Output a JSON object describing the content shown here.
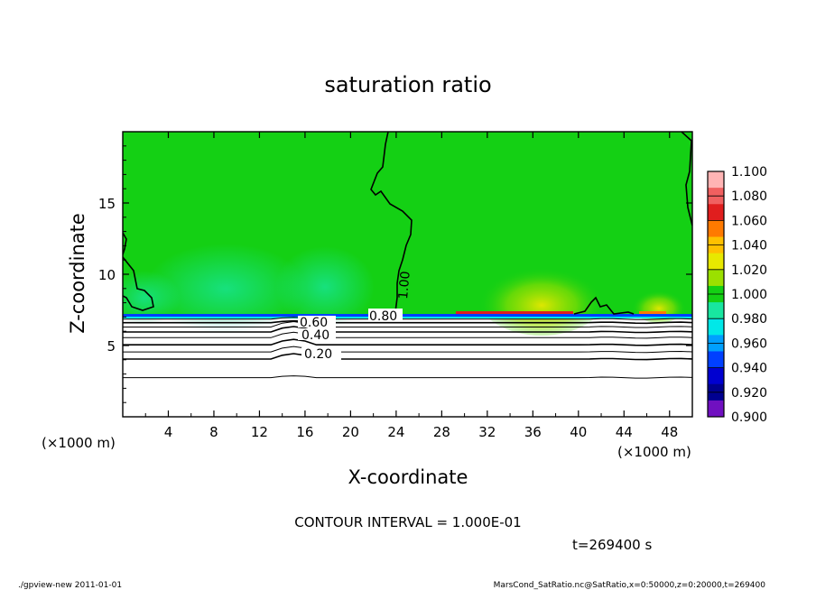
{
  "chart_data": {
    "type": "heatmap",
    "title": "saturation ratio",
    "xlabel": "X-coordinate",
    "ylabel": "Z-coordinate",
    "x_unit_label": "(×1000 m)",
    "y_unit_label": "(×1000 m)",
    "xlim": [
      0,
      50
    ],
    "ylim": [
      0,
      20
    ],
    "x_ticks": [
      "4",
      "8",
      "12",
      "16",
      "20",
      "24",
      "28",
      "32",
      "36",
      "40",
      "44",
      "48"
    ],
    "y_ticks": [
      "5",
      "10",
      "15"
    ],
    "colorbar": {
      "labels": [
        "1.100",
        "1.080",
        "1.060",
        "1.040",
        "1.020",
        "1.000",
        "0.980",
        "0.960",
        "0.940",
        "0.920",
        "0.900"
      ],
      "colors": [
        "#ffb4b4",
        "#f06060",
        "#e01e1e",
        "#ff7a00",
        "#ffc000",
        "#e8e800",
        "#9be000",
        "#14d014",
        "#18e6a0",
        "#00e8e8",
        "#00a0ff",
        "#0040ff",
        "#0000d0",
        "#000090",
        "#7010c0"
      ]
    },
    "fill_field": {
      "above_cloud_base": "1.000 (green) with weaker 0.98–0.99 patches near z≈7–11 and supersaturation 1.00–1.06 near x≈30–40",
      "cloud_base_z": 7.0
    },
    "contour_labels": [
      "1.00",
      "0.80",
      "0.60",
      "0.40",
      "0.20"
    ],
    "contour_levels_z": [
      {
        "value": 0.9,
        "z": 6.85
      },
      {
        "value": 0.8,
        "z": 6.6
      },
      {
        "value": 0.7,
        "z": 6.3
      },
      {
        "value": 0.6,
        "z": 5.95
      },
      {
        "value": 0.5,
        "z": 5.55
      },
      {
        "value": 0.4,
        "z": 5.05
      },
      {
        "value": 0.3,
        "z": 4.55
      },
      {
        "value": 0.2,
        "z": 4.05
      },
      {
        "value": 0.1,
        "z": 2.75
      }
    ],
    "contour_interval_text": "CONTOUR INTERVAL = 1.000E-01",
    "time_text": "t=269400 s"
  },
  "footer": {
    "left": "./gpview-new   2011-01-01",
    "right": "MarsCond_SatRatio.nc@SatRatio,x=0:50000,z=0:20000,t=269400"
  }
}
